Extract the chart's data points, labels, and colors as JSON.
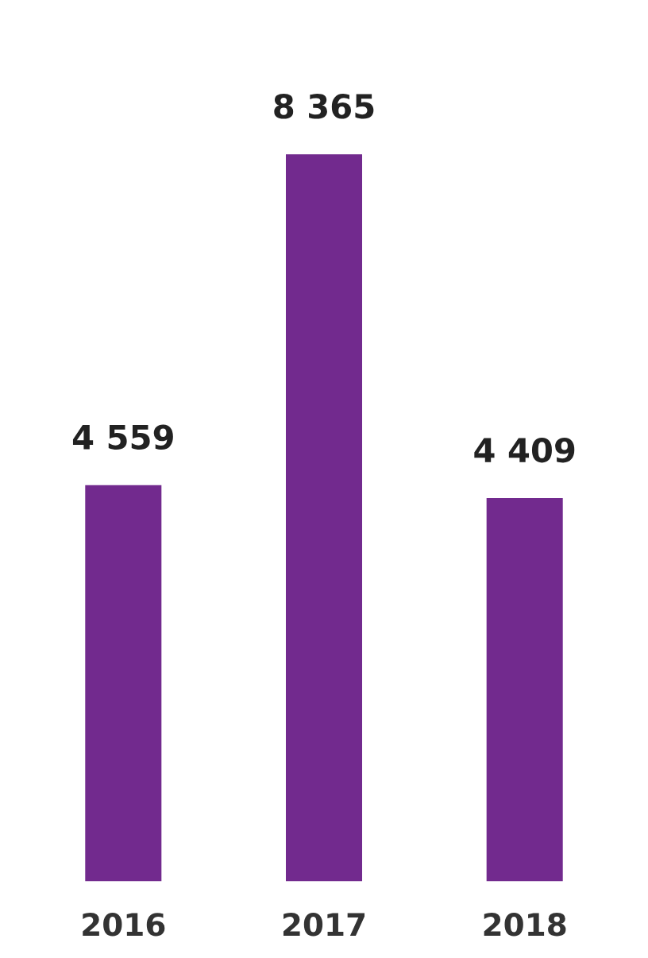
{
  "chart_data": {
    "type": "bar",
    "categories": [
      "2016",
      "2017",
      "2018"
    ],
    "values": [
      4559,
      8365,
      4409
    ],
    "value_labels": [
      "4 559",
      "8 365",
      "4 409"
    ],
    "color": "#722a8e",
    "grid": false,
    "legend": false
  }
}
